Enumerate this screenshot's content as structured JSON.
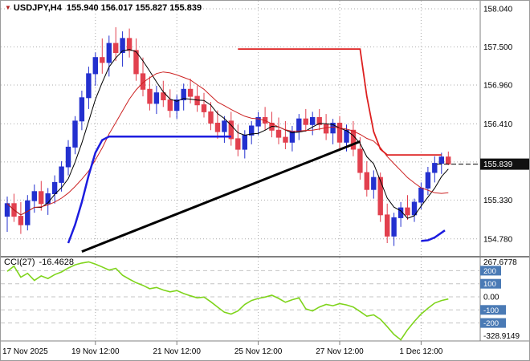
{
  "header": {
    "symbol": "USDJPY,H4",
    "ohlc": "155.940 156.017 155.827 155.839",
    "trend_icon": "down-triangle"
  },
  "colors": {
    "up": "#2330cf",
    "down": "#e2404e",
    "ma_fast": "#000000",
    "ma_slow": "#cc2222",
    "trail_up": "#1c1cdf",
    "trail_down": "#dd2020",
    "trendline": "#000000",
    "cci": "#7fd41c",
    "level_badge": "#4a7ab5",
    "bid_box": "#111111",
    "grid": "#ababab"
  },
  "chart_data": {
    "type": "candlestick",
    "symbol": "USDJPY",
    "timeframe": "H4",
    "ohlc_display": {
      "open": "155.940",
      "high": "156.017",
      "low": "155.827",
      "close": "155.839"
    },
    "price_axis": {
      "ticks": [
        {
          "value": 158.04,
          "label": "158.040"
        },
        {
          "value": 157.5,
          "label": "157.500"
        },
        {
          "value": 156.96,
          "label": "156.960"
        },
        {
          "value": 156.41,
          "label": "156.410"
        },
        {
          "value": 155.87,
          "label": ""
        },
        {
          "value": 155.33,
          "label": "155.330"
        },
        {
          "value": 154.78,
          "label": "154.780"
        }
      ],
      "bid": 155.839,
      "bid_label": "155.839"
    },
    "time_axis": {
      "labels": [
        {
          "text": "17 Nov 2025",
          "index": null
        },
        {
          "text": "19 Nov 12:00",
          "index": 13
        },
        {
          "text": "21 Nov 12:00",
          "index": 25
        },
        {
          "text": "25 Nov 12:00",
          "index": 37
        },
        {
          "text": "27 Nov 12:00",
          "index": 49
        },
        {
          "text": "1 Dec 12:00",
          "index": 61
        }
      ]
    },
    "candles": [
      [
        155.1,
        155.38,
        154.88,
        155.28
      ],
      [
        155.28,
        155.42,
        155.02,
        155.1
      ],
      [
        155.1,
        155.3,
        154.85,
        154.98
      ],
      [
        154.98,
        155.4,
        154.9,
        155.32
      ],
      [
        155.32,
        155.55,
        155.15,
        155.45
      ],
      [
        155.45,
        155.6,
        155.18,
        155.28
      ],
      [
        155.28,
        155.5,
        155.12,
        155.42
      ],
      [
        155.42,
        155.68,
        155.28,
        155.58
      ],
      [
        155.58,
        155.88,
        155.45,
        155.8
      ],
      [
        155.8,
        156.18,
        155.68,
        156.08
      ],
      [
        156.08,
        156.52,
        155.98,
        156.45
      ],
      [
        156.45,
        156.88,
        156.32,
        156.78
      ],
      [
        156.78,
        157.22,
        156.62,
        157.12
      ],
      [
        157.12,
        157.42,
        156.95,
        157.35
      ],
      [
        157.35,
        157.62,
        157.12,
        157.28
      ],
      [
        157.28,
        157.66,
        157.08,
        157.55
      ],
      [
        157.55,
        157.78,
        157.3,
        157.42
      ],
      [
        157.42,
        157.72,
        157.22,
        157.62
      ],
      [
        157.62,
        157.76,
        157.35,
        157.45
      ],
      [
        157.45,
        157.62,
        157.02,
        157.12
      ],
      [
        157.12,
        157.35,
        156.8,
        156.9
      ],
      [
        156.9,
        157.08,
        156.6,
        156.7
      ],
      [
        156.7,
        156.95,
        156.55,
        156.85
      ],
      [
        156.85,
        157.02,
        156.65,
        156.75
      ],
      [
        156.75,
        156.9,
        156.5,
        156.6
      ],
      [
        156.6,
        156.82,
        156.48,
        156.75
      ],
      [
        156.75,
        156.98,
        156.6,
        156.9
      ],
      [
        156.9,
        157.05,
        156.7,
        156.8
      ],
      [
        156.8,
        156.95,
        156.58,
        156.68
      ],
      [
        156.68,
        156.85,
        156.5,
        156.58
      ],
      [
        156.58,
        156.72,
        156.32,
        156.42
      ],
      [
        156.42,
        156.6,
        156.2,
        156.3
      ],
      [
        156.3,
        156.52,
        156.14,
        156.45
      ],
      [
        156.45,
        156.58,
        156.1,
        156.2
      ],
      [
        156.2,
        156.4,
        155.95,
        156.05
      ],
      [
        156.05,
        156.32,
        155.92,
        156.25
      ],
      [
        156.25,
        156.45,
        156.12,
        156.38
      ],
      [
        156.38,
        156.58,
        156.25,
        156.5
      ],
      [
        156.5,
        156.65,
        156.32,
        156.42
      ],
      [
        156.42,
        156.58,
        156.22,
        156.32
      ],
      [
        156.32,
        156.5,
        156.12,
        156.22
      ],
      [
        156.22,
        156.45,
        156.05,
        156.15
      ],
      [
        156.15,
        156.38,
        156.02,
        156.3
      ],
      [
        156.3,
        156.55,
        156.18,
        156.48
      ],
      [
        156.48,
        156.62,
        156.3,
        156.4
      ],
      [
        156.4,
        156.58,
        156.25,
        156.5
      ],
      [
        156.5,
        156.62,
        156.32,
        156.4
      ],
      [
        156.4,
        156.55,
        156.18,
        156.28
      ],
      [
        156.28,
        156.48,
        156.12,
        156.42
      ],
      [
        156.42,
        156.52,
        156.05,
        156.15
      ],
      [
        156.15,
        156.4,
        156.02,
        156.32
      ],
      [
        156.32,
        156.45,
        155.95,
        156.05
      ],
      [
        156.05,
        156.22,
        155.62,
        155.72
      ],
      [
        155.72,
        155.88,
        155.38,
        155.48
      ],
      [
        155.48,
        155.75,
        155.35,
        155.65
      ],
      [
        155.65,
        155.72,
        155.02,
        155.12
      ],
      [
        155.12,
        155.28,
        154.72,
        154.82
      ],
      [
        154.82,
        155.15,
        154.68,
        155.08
      ],
      [
        155.08,
        155.3,
        154.95,
        155.22
      ],
      [
        155.22,
        155.4,
        155.05,
        155.12
      ],
      [
        155.12,
        155.35,
        155.02,
        155.3
      ],
      [
        155.3,
        155.58,
        155.2,
        155.5
      ],
      [
        155.5,
        155.8,
        155.4,
        155.72
      ],
      [
        155.72,
        155.95,
        155.58,
        155.85
      ],
      [
        155.85,
        156.0,
        155.7,
        155.94
      ],
      [
        155.94,
        156.017,
        155.827,
        155.839
      ]
    ],
    "overlays": {
      "ma_fast_period": 5,
      "ma_slow_period": 13,
      "trail_up": [
        [
          9,
          154.72
        ],
        [
          10,
          154.98
        ],
        [
          11,
          155.3
        ],
        [
          12,
          155.68
        ],
        [
          13,
          156.0
        ],
        [
          14,
          156.18
        ],
        [
          15,
          156.23
        ],
        [
          33,
          156.23
        ]
      ],
      "trail_up2": [
        [
          61,
          154.75
        ],
        [
          62,
          154.76
        ],
        [
          63,
          154.8
        ],
        [
          64.5,
          154.9
        ]
      ],
      "trail_down": [
        [
          34,
          157.47
        ],
        [
          52,
          157.47
        ],
        [
          53,
          156.8
        ],
        [
          54,
          156.3
        ],
        [
          55,
          156.05
        ],
        [
          56,
          155.97
        ],
        [
          64,
          155.97
        ]
      ],
      "trendline": [
        [
          11,
          154.6
        ],
        [
          52,
          156.16
        ]
      ]
    },
    "indicator": {
      "name": "CCI",
      "period": 27,
      "label": "CCI(27)",
      "value_label": "-16.4628",
      "max": 267.6778,
      "min": -328.9149,
      "max_label": "267.6778",
      "min_label": "-328.9149",
      "zero_label": "0.00",
      "levels": [
        {
          "value": 200,
          "label": "200",
          "badge": true
        },
        {
          "value": 100,
          "label": "100",
          "badge": true
        },
        {
          "value": 0,
          "label": "0.00",
          "badge": false
        },
        {
          "value": -100,
          "label": "-100",
          "badge": true
        },
        {
          "value": -200,
          "label": "-200",
          "badge": true
        }
      ],
      "values": [
        195,
        235,
        150,
        180,
        125,
        160,
        140,
        170,
        190,
        220,
        245,
        258,
        267.68,
        250,
        228,
        205,
        218,
        165,
        135,
        108,
        88,
        62,
        72,
        52,
        38,
        48,
        25,
        8,
        -8,
        -2,
        -38,
        -78,
        -118,
        -132,
        -108,
        -58,
        -28,
        -12,
        -2,
        12,
        -12,
        -42,
        -22,
        -8,
        -92,
        -108,
        -78,
        -58,
        -68,
        -52,
        -62,
        -78,
        -112,
        -148,
        -138,
        -172,
        -228,
        -288,
        -328.91,
        -252,
        -188,
        -132,
        -88,
        -48,
        -28,
        -16.46
      ]
    }
  }
}
